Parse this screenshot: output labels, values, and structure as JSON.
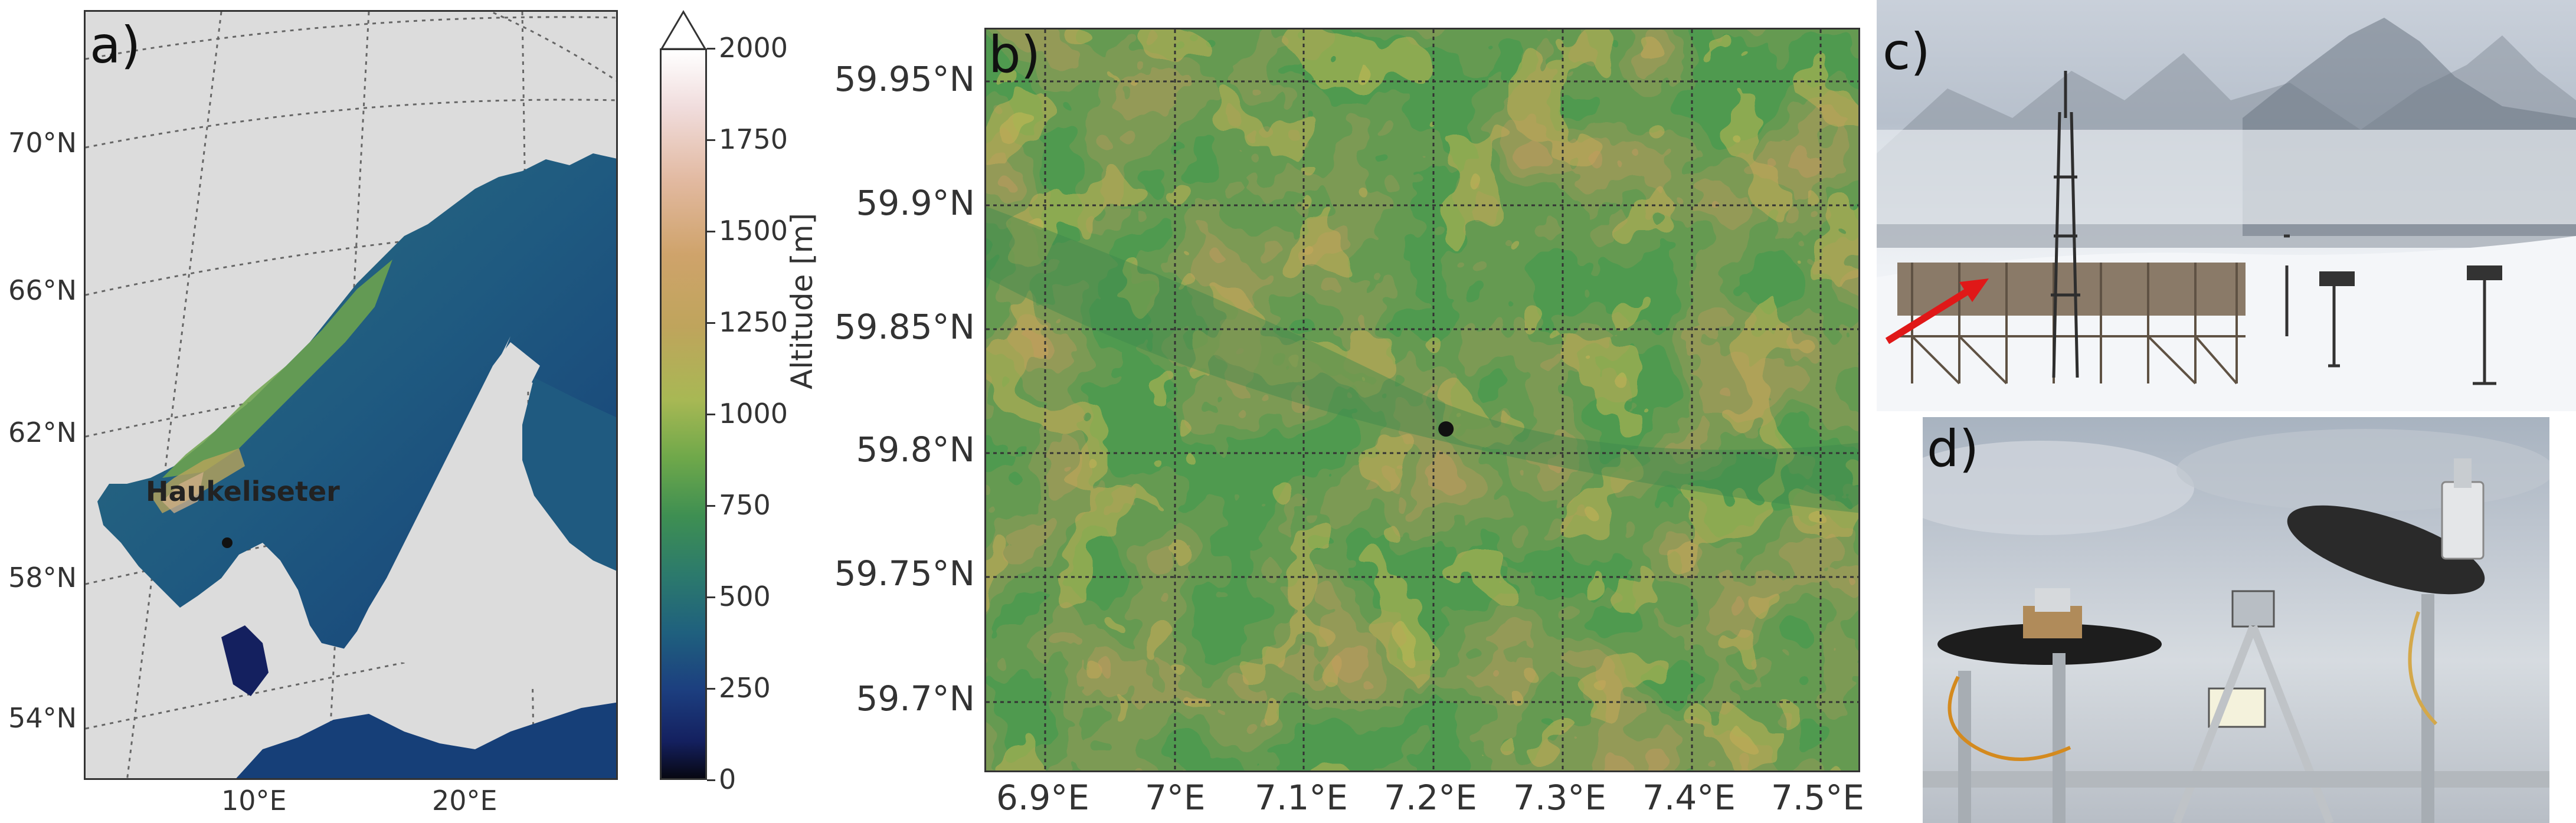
{
  "panels": {
    "a": {
      "label": "a)",
      "site_name": "Haukeliseter",
      "lat_labels": [
        "70°N",
        "66°N",
        "62°N",
        "58°N",
        "54°N"
      ],
      "lon_labels": [
        "10°E",
        "20°E"
      ]
    },
    "colorbar": {
      "label": "Altitude [m]",
      "ticks": [
        "2000",
        "1750",
        "1500",
        "1250",
        "1000",
        "750",
        "500",
        "250",
        "0"
      ],
      "range": [
        0,
        2000
      ],
      "extend": "max",
      "colors": [
        "#070712",
        "#14205f",
        "#1c3e7f",
        "#1f607e",
        "#2c7a6c",
        "#3e8f52",
        "#6fa84a",
        "#a8b854",
        "#bfa45c",
        "#cfa36b",
        "#e2b9a0",
        "#f0dcdc",
        "#ffffff"
      ]
    },
    "b": {
      "label": "b)",
      "lat_labels": [
        "59.95°N",
        "59.9°N",
        "59.85°N",
        "59.8°N",
        "59.75°N",
        "59.7°N"
      ],
      "lon_labels": [
        "6.9°E",
        "7°E",
        "7.1°E",
        "7.2°E",
        "7.3°E",
        "7.4°E",
        "7.5°E"
      ],
      "station": {
        "lon": 7.21,
        "lat": 59.81
      }
    },
    "c": {
      "label": "c)"
    },
    "d": {
      "label": "d)"
    }
  }
}
